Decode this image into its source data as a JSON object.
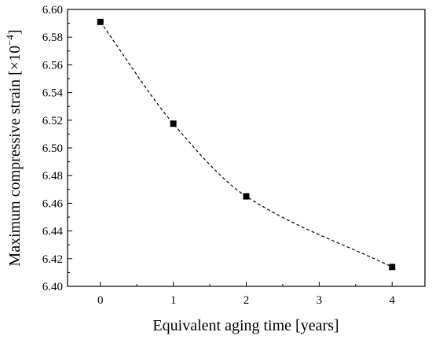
{
  "chart_data": {
    "type": "scatter",
    "title": "",
    "xlabel": "Equivalent aging time [years]",
    "ylabel": "Maximum compressive strain [×10",
    "ylabel_exponent": "−4",
    "ylabel_suffix": "]",
    "xlim": [
      -0.45,
      4.45
    ],
    "ylim": [
      6.4,
      6.6
    ],
    "x_ticks": [
      0,
      1,
      2,
      3,
      4
    ],
    "y_ticks": [
      6.4,
      6.42,
      6.44,
      6.46,
      6.48,
      6.5,
      6.52,
      6.54,
      6.56,
      6.58,
      6.6
    ],
    "grid": false,
    "legend": "none",
    "marker": "square",
    "fit_line": "dashed smooth curve",
    "series": [
      {
        "x": [
          0,
          1,
          2,
          4
        ],
        "y": [
          6.591,
          6.5175,
          6.465,
          6.414
        ]
      }
    ],
    "colors": {
      "marker": "#000000",
      "line": "#000000",
      "axes": "#000000"
    }
  }
}
